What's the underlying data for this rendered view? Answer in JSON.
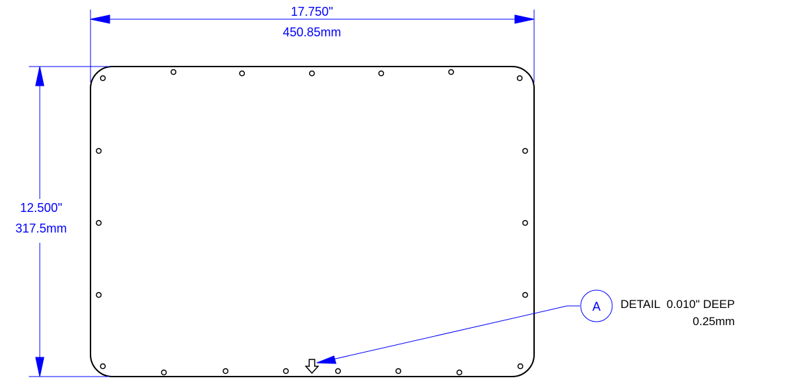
{
  "drawing": {
    "width_dimension": {
      "inches": "17.750\"",
      "mm": "450.85mm"
    },
    "height_dimension": {
      "inches": "12.500\"",
      "mm": "317.5mm"
    },
    "detail_callout": {
      "letter": "A",
      "note_line1": "DETAIL  0.010\" DEEP",
      "note_line2": "0.25mm"
    },
    "colors": {
      "dimension": "#0000ff",
      "outline": "#000000"
    }
  }
}
